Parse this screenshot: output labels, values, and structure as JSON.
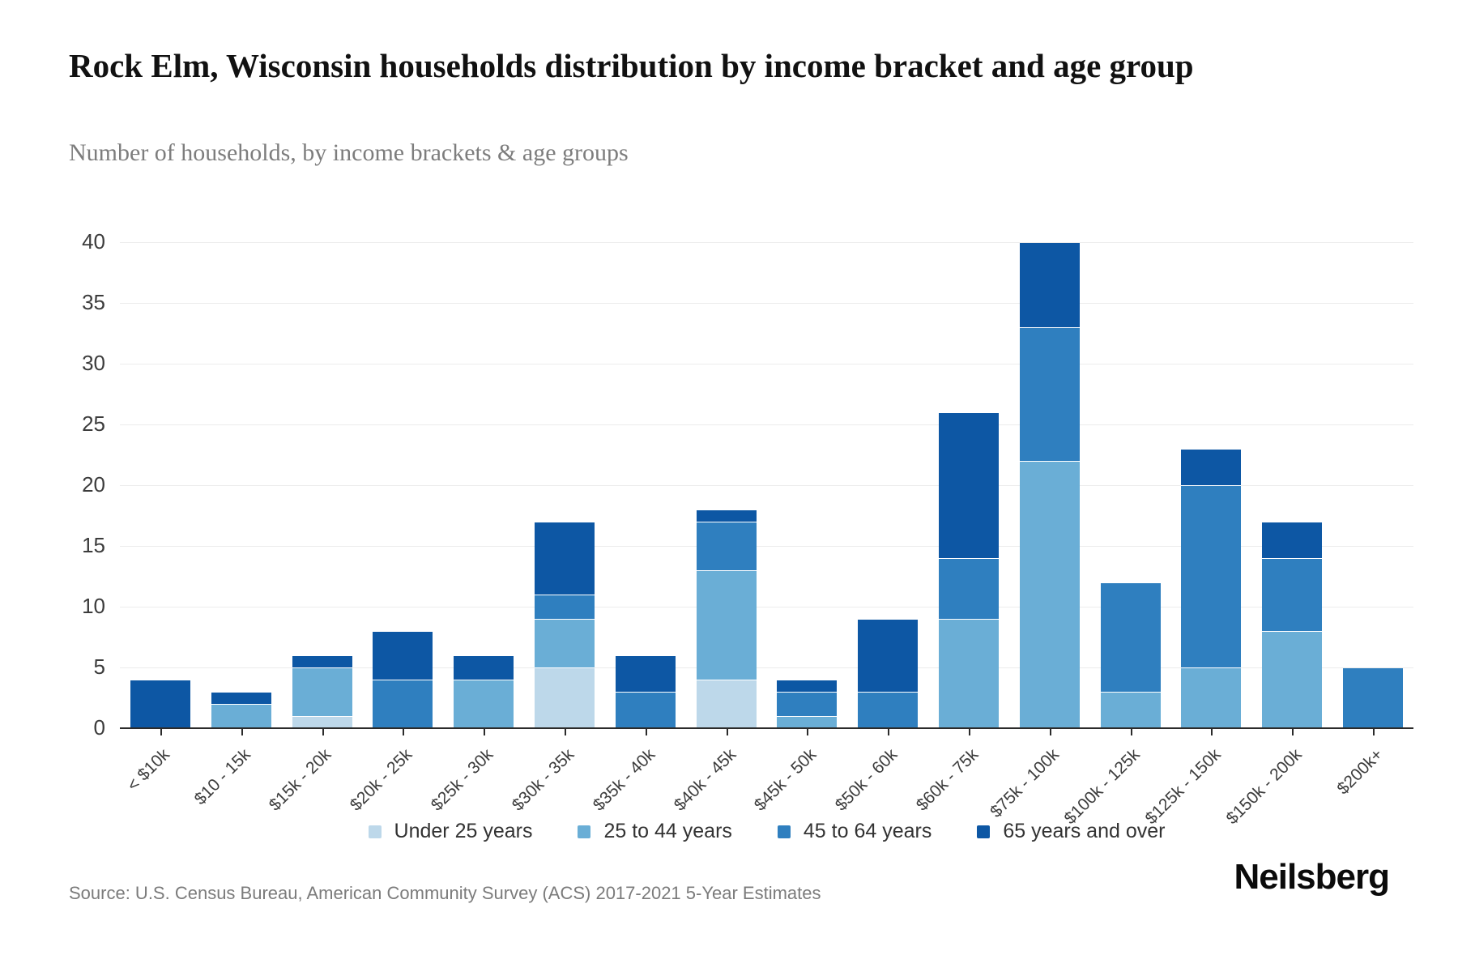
{
  "header": {
    "title": "Rock Elm, Wisconsin households distribution by income bracket and age group",
    "subtitle": "Number of households, by income brackets & age groups"
  },
  "footer": {
    "source": "Source: U.S. Census Bureau, American Community Survey (ACS) 2017-2021 5-Year Estimates",
    "logo": "Neilsberg"
  },
  "chart_data": {
    "type": "bar",
    "stacked": true,
    "title": "Rock Elm, Wisconsin households distribution by income bracket and age group",
    "subtitle": "Number of households, by income brackets & age groups",
    "xlabel": "",
    "ylabel": "",
    "ylim": [
      0,
      40
    ],
    "ytick_step": 5,
    "grid": true,
    "legend_position": "bottom",
    "categories": [
      "< $10k",
      "$10 - 15k",
      "$15k - 20k",
      "$20k - 25k",
      "$25k - 30k",
      "$30k - 35k",
      "$35k - 40k",
      "$40k - 45k",
      "$45k - 50k",
      "$50k - 60k",
      "$60k - 75k",
      "$75k - 100k",
      "$100k - 125k",
      "$125k - 150k",
      "$150k - 200k",
      "$200k+"
    ],
    "series": [
      {
        "name": "Under 25 years",
        "color": "#bdd8ea",
        "values": [
          0,
          0,
          1,
          0,
          0,
          5,
          0,
          4,
          0,
          0,
          0,
          0,
          0,
          0,
          0,
          0
        ]
      },
      {
        "name": "25 to 44 years",
        "color": "#6aaed6",
        "values": [
          0,
          2,
          4,
          0,
          4,
          4,
          0,
          9,
          1,
          0,
          9,
          22,
          3,
          5,
          8,
          0
        ]
      },
      {
        "name": "45 to 64 years",
        "color": "#2f7fbf",
        "values": [
          0,
          0,
          0,
          4,
          0,
          2,
          3,
          4,
          2,
          3,
          5,
          11,
          9,
          15,
          6,
          5
        ]
      },
      {
        "name": "65 years and over",
        "color": "#0d57a4",
        "values": [
          4,
          1,
          1,
          4,
          2,
          6,
          3,
          1,
          1,
          6,
          12,
          7,
          0,
          3,
          3,
          0
        ]
      }
    ],
    "totals": [
      4,
      3,
      6,
      8,
      6,
      17,
      6,
      18,
      4,
      9,
      26,
      40,
      12,
      23,
      17,
      5
    ]
  }
}
